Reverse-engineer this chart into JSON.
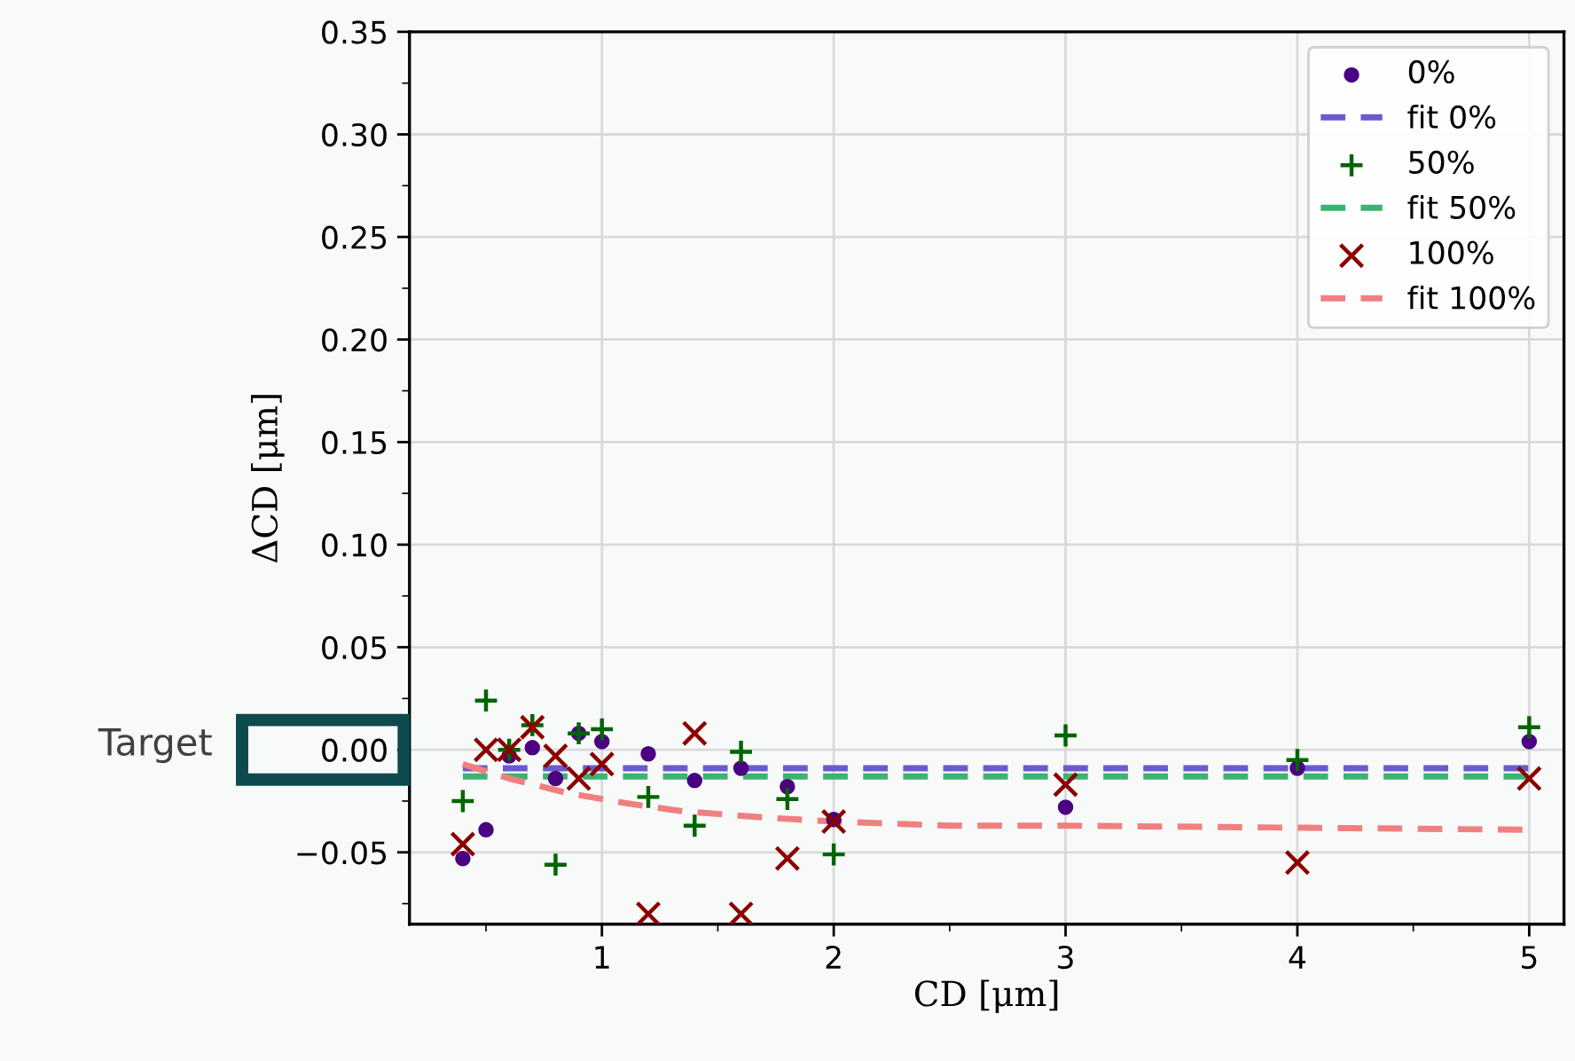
{
  "chart_data": {
    "type": "scatter",
    "xlabel": "CD [μm]",
    "ylabel": "ΔCD [μm]",
    "annotations": [
      "Target"
    ],
    "xlim": [
      0.17,
      5.15
    ],
    "xticks": [
      1,
      2,
      3,
      4,
      5
    ],
    "ylim": [
      -0.085,
      0.35
    ],
    "yticks": [
      -0.05,
      {
        "value": 0,
        "label": "0.00"
      },
      0.05,
      {
        "value": 0.1,
        "label": "0.10"
      },
      0.15,
      {
        "value": 0.2,
        "label": "0.20"
      },
      0.25,
      {
        "value": 0.3,
        "label": "0.30"
      },
      0.35
    ],
    "grid": true,
    "legend": "top right",
    "series": [
      {
        "name": "0%",
        "marker": "circle",
        "color": "#4b0082",
        "x": [
          0.4,
          0.5,
          0.6,
          0.7,
          0.8,
          0.9,
          1.0,
          1.2,
          1.4,
          1.6,
          1.8,
          2,
          3,
          4,
          5
        ],
        "values": [
          -0.053,
          -0.039,
          -0.003,
          0.001,
          -0.014,
          0.008,
          0.004,
          -0.002,
          -0.015,
          -0.009,
          -0.018,
          -0.034,
          -0.028,
          -0.009,
          0.004
        ]
      },
      {
        "name": "fit 0%",
        "type": "line",
        "line_style": "dashed",
        "color": "#6a5acd",
        "x": [
          0.4,
          5
        ],
        "values": [
          -0.009,
          -0.009
        ]
      },
      {
        "name": "50%",
        "marker": "plus",
        "color": "#006400",
        "x": [
          0.4,
          0.5,
          0.6,
          0.7,
          0.8,
          0.9,
          1.0,
          1.2,
          1.4,
          1.6,
          1.8,
          2,
          3,
          4,
          5
        ],
        "values": [
          -0.025,
          0.024,
          0.0,
          0.012,
          -0.056,
          0.008,
          0.01,
          -0.023,
          -0.037,
          -0.001,
          -0.024,
          -0.051,
          0.007,
          -0.005,
          0.011
        ]
      },
      {
        "name": "fit 50%",
        "type": "line",
        "line_style": "dashed",
        "color": "#3cb371",
        "x": [
          0.4,
          5
        ],
        "values": [
          -0.013,
          -0.013
        ]
      },
      {
        "name": "100%",
        "marker": "cross",
        "color": "#8b0000",
        "x": [
          0.4,
          0.5,
          0.6,
          0.7,
          0.8,
          0.9,
          1.0,
          1.2,
          1.4,
          1.6,
          1.8,
          2,
          3,
          4,
          5
        ],
        "values": [
          -0.046,
          0.0,
          0.0,
          0.011,
          -0.003,
          -0.014,
          -0.007,
          -0.08,
          0.008,
          -0.08,
          -0.053,
          -0.035,
          -0.017,
          -0.055,
          -0.014
        ]
      },
      {
        "name": "fit 100%",
        "type": "line",
        "line_style": "dashed",
        "color": "#f08080",
        "x": [
          0.4,
          0.6,
          0.85,
          1.1,
          1.35,
          1.7,
          2,
          2.5,
          3,
          4,
          5
        ],
        "values": [
          -0.007,
          -0.014,
          -0.021,
          -0.026,
          -0.03,
          -0.033,
          -0.035,
          -0.037,
          -0.037,
          -0.038,
          -0.039
        ]
      }
    ]
  }
}
